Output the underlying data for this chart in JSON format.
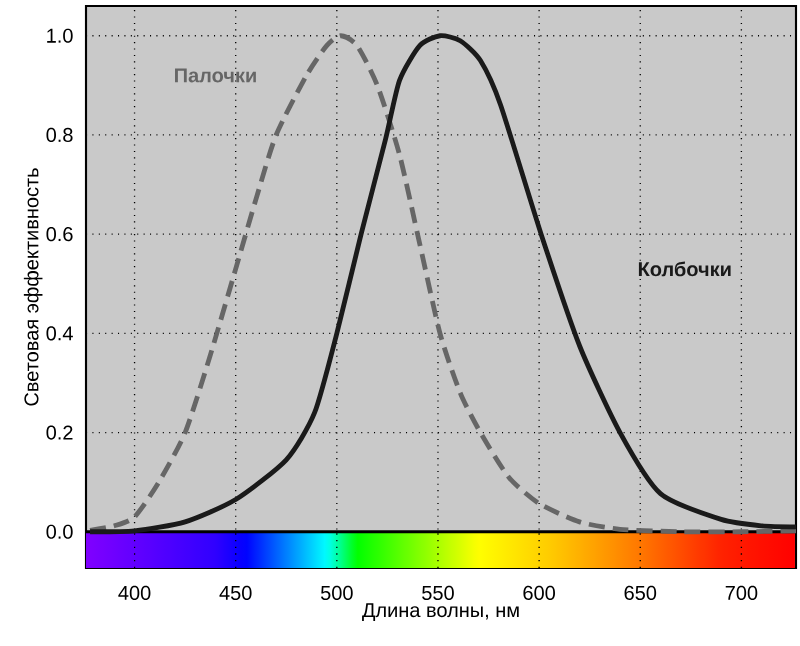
{
  "chart_data": {
    "type": "line",
    "xlabel": "Длина волны, нм",
    "ylabel": "Световая эффективность",
    "xlim": [
      376,
      727
    ],
    "ylim": [
      -0.073,
      1.06
    ],
    "xticks": [
      400,
      450,
      500,
      550,
      600,
      650,
      700
    ],
    "yticks": [
      {
        "value": 0,
        "label": "0.0"
      },
      0.2,
      0.4,
      0.6,
      0.8,
      {
        "value": 1,
        "label": "1.0"
      }
    ],
    "grid": true,
    "bands": [
      {
        "axis": "y",
        "from": -0.073,
        "to": 0
      }
    ],
    "series": [
      {
        "name": "Палочки",
        "color": "#666666",
        "line_style": "dashed",
        "x": [
          378,
          390,
          400,
          412,
          425,
          437,
          450,
          460,
          470,
          485,
          495,
          502,
          510,
          520,
          531,
          541,
          551,
          561,
          571,
          585,
          600,
          620,
          640,
          670,
          700,
          727
        ],
        "values": [
          0.003,
          0.012,
          0.03,
          0.1,
          0.2,
          0.35,
          0.53,
          0.67,
          0.8,
          0.92,
          0.98,
          1.0,
          0.98,
          0.9,
          0.76,
          0.58,
          0.4,
          0.28,
          0.2,
          0.11,
          0.057,
          0.02,
          0.005,
          0.0,
          0.0,
          0.002
        ]
      },
      {
        "name": "Колбочки",
        "color": "#1a1a1a",
        "line_style": "solid",
        "x": [
          378,
          400,
          425,
          450,
          475,
          489,
          500,
          512,
          524,
          531,
          541,
          551,
          561,
          571,
          581,
          601,
          620,
          640,
          660,
          690,
          710,
          727
        ],
        "values": [
          0.0,
          0.002,
          0.02,
          0.065,
          0.145,
          0.24,
          0.4,
          0.6,
          0.79,
          0.91,
          0.98,
          1.0,
          0.99,
          0.95,
          0.86,
          0.6,
          0.375,
          0.2,
          0.077,
          0.025,
          0.012,
          0.01
        ]
      }
    ]
  }
}
